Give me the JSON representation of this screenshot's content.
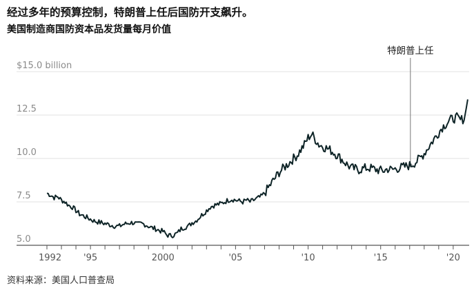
{
  "title": "经过多年的预算控制，特朗普上任后国防开支飙升。",
  "subtitle": "美国制造商国防资本品发货量每月价值",
  "source": "资料来源：美国人口普查局",
  "chart_data": {
    "type": "line",
    "title": "经过多年的预算控制，特朗普上任后国防开支飙升。",
    "subtitle": "美国制造商国防资本品发货量每月价值",
    "ylim": [
      5.0,
      15.0
    ],
    "xlim": [
      1992,
      2021.1
    ],
    "yticks": [
      {
        "value": 15.0,
        "label": "$15.0 billion"
      },
      {
        "value": 12.5,
        "label": "12.5"
      },
      {
        "value": 10.0,
        "label": "10.0"
      },
      {
        "value": 7.5,
        "label": "7.5"
      },
      {
        "value": 5.0,
        "label": "5.0"
      }
    ],
    "xticks": [
      {
        "value": 1992,
        "label": "1992"
      },
      {
        "value": 1995,
        "label": "'95"
      },
      {
        "value": 2000,
        "label": "2000"
      },
      {
        "value": 2005,
        "label": "'05"
      },
      {
        "value": 2010,
        "label": "'10"
      },
      {
        "value": 2015,
        "label": "'15"
      },
      {
        "value": 2020,
        "label": "'20"
      }
    ],
    "grid": true,
    "color": "#0d2326",
    "annotation": {
      "label": "特朗普上任",
      "x": 2017.05,
      "y": 9.6
    },
    "series": [
      {
        "name": "",
        "points": [
          [
            1992.0,
            8.0
          ],
          [
            1992.25,
            7.9
          ],
          [
            1992.5,
            7.75
          ],
          [
            1992.75,
            7.8
          ],
          [
            1993.0,
            7.6
          ],
          [
            1993.25,
            7.5
          ],
          [
            1993.5,
            7.3
          ],
          [
            1993.75,
            7.2
          ],
          [
            1994.0,
            7.0
          ],
          [
            1994.25,
            6.8
          ],
          [
            1994.5,
            6.7
          ],
          [
            1994.75,
            6.6
          ],
          [
            1995.0,
            6.5
          ],
          [
            1995.25,
            6.4
          ],
          [
            1995.5,
            6.35
          ],
          [
            1995.75,
            6.3
          ],
          [
            1996.0,
            6.25
          ],
          [
            1996.25,
            6.2
          ],
          [
            1996.5,
            6.15
          ],
          [
            1996.75,
            6.1
          ],
          [
            1997.0,
            6.1
          ],
          [
            1997.25,
            6.2
          ],
          [
            1997.5,
            6.25
          ],
          [
            1997.75,
            6.3
          ],
          [
            1998.0,
            6.3
          ],
          [
            1998.25,
            6.2
          ],
          [
            1998.5,
            6.25
          ],
          [
            1998.75,
            6.2
          ],
          [
            1999.0,
            6.1
          ],
          [
            1999.25,
            6.0
          ],
          [
            1999.5,
            5.95
          ],
          [
            1999.75,
            5.85
          ],
          [
            2000.0,
            5.8
          ],
          [
            2000.25,
            5.6
          ],
          [
            2000.5,
            5.55
          ],
          [
            2000.75,
            5.6
          ],
          [
            2001.0,
            5.7
          ],
          [
            2001.25,
            5.95
          ],
          [
            2001.5,
            6.05
          ],
          [
            2001.75,
            6.1
          ],
          [
            2002.0,
            6.3
          ],
          [
            2002.25,
            6.4
          ],
          [
            2002.5,
            6.6
          ],
          [
            2002.75,
            6.8
          ],
          [
            2003.0,
            7.0
          ],
          [
            2003.25,
            7.2
          ],
          [
            2003.5,
            7.3
          ],
          [
            2003.75,
            7.35
          ],
          [
            2004.0,
            7.4
          ],
          [
            2004.25,
            7.5
          ],
          [
            2004.5,
            7.6
          ],
          [
            2004.75,
            7.65
          ],
          [
            2005.0,
            7.6
          ],
          [
            2005.25,
            7.55
          ],
          [
            2005.5,
            7.5
          ],
          [
            2005.75,
            7.6
          ],
          [
            2006.0,
            7.5
          ],
          [
            2006.25,
            7.6
          ],
          [
            2006.5,
            7.7
          ],
          [
            2006.75,
            7.8
          ],
          [
            2007.0,
            8.0
          ],
          [
            2007.25,
            8.3
          ],
          [
            2007.5,
            8.6
          ],
          [
            2007.75,
            8.9
          ],
          [
            2008.0,
            9.2
          ],
          [
            2008.25,
            9.4
          ],
          [
            2008.5,
            9.6
          ],
          [
            2008.75,
            9.8
          ],
          [
            2009.0,
            10.0
          ],
          [
            2009.25,
            10.2
          ],
          [
            2009.5,
            10.5
          ],
          [
            2009.75,
            10.8
          ],
          [
            2010.0,
            11.2
          ],
          [
            2010.25,
            11.4
          ],
          [
            2010.5,
            11.1
          ],
          [
            2010.75,
            10.8
          ],
          [
            2011.0,
            10.7
          ],
          [
            2011.25,
            10.6
          ],
          [
            2011.5,
            10.5
          ],
          [
            2011.75,
            10.35
          ],
          [
            2012.0,
            10.2
          ],
          [
            2012.25,
            10.0
          ],
          [
            2012.5,
            9.8
          ],
          [
            2012.75,
            9.6
          ],
          [
            2013.0,
            9.45
          ],
          [
            2013.25,
            9.4
          ],
          [
            2013.5,
            9.35
          ],
          [
            2013.75,
            9.4
          ],
          [
            2014.0,
            9.45
          ],
          [
            2014.25,
            9.45
          ],
          [
            2014.5,
            9.4
          ],
          [
            2014.75,
            9.35
          ],
          [
            2015.0,
            9.3
          ],
          [
            2015.25,
            9.3
          ],
          [
            2015.5,
            9.4
          ],
          [
            2015.75,
            9.35
          ],
          [
            2016.0,
            9.4
          ],
          [
            2016.25,
            9.45
          ],
          [
            2016.5,
            9.5
          ],
          [
            2016.75,
            9.55
          ],
          [
            2017.0,
            9.6
          ],
          [
            2017.25,
            9.7
          ],
          [
            2017.5,
            9.85
          ],
          [
            2017.75,
            10.05
          ],
          [
            2018.0,
            10.3
          ],
          [
            2018.25,
            10.6
          ],
          [
            2018.5,
            10.9
          ],
          [
            2018.75,
            11.2
          ],
          [
            2019.0,
            11.5
          ],
          [
            2019.25,
            11.8
          ],
          [
            2019.5,
            12.0
          ],
          [
            2019.75,
            12.2
          ],
          [
            2020.0,
            12.3
          ],
          [
            2020.25,
            12.35
          ],
          [
            2020.5,
            12.2
          ],
          [
            2020.75,
            12.3
          ],
          [
            2020.9,
            12.9
          ],
          [
            2021.0,
            13.4
          ]
        ]
      }
    ]
  }
}
